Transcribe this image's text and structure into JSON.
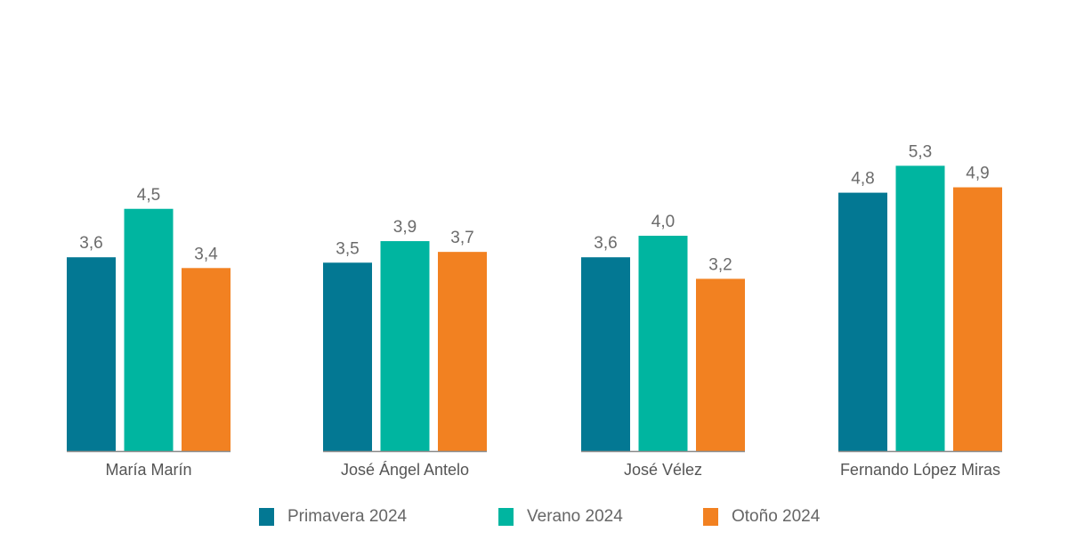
{
  "chart_data": {
    "type": "bar",
    "categories": [
      "María Marín",
      "José Ángel Antelo",
      "José Vélez",
      "Fernando López Miras"
    ],
    "series": [
      {
        "name": "Primavera 2024",
        "values": [
          3.6,
          3.5,
          3.6,
          4.8
        ],
        "labels": [
          "3,6",
          "3,5",
          "3,6",
          "4,8"
        ],
        "color": "#037893"
      },
      {
        "name": "Verano 2024",
        "values": [
          4.5,
          3.9,
          4.0,
          5.3
        ],
        "labels": [
          "4,5",
          "3,9",
          "4,0",
          "5,3"
        ],
        "color": "#00b5a0"
      },
      {
        "name": "Otoño 2024",
        "values": [
          3.4,
          3.7,
          3.2,
          4.9
        ],
        "labels": [
          "3,4",
          "3,7",
          "3,2",
          "4,9"
        ],
        "color": "#f28121"
      }
    ],
    "title": "",
    "xlabel": "",
    "ylabel": "",
    "ylim": [
      0,
      5.3
    ],
    "grid": false,
    "legend": "bottom"
  }
}
